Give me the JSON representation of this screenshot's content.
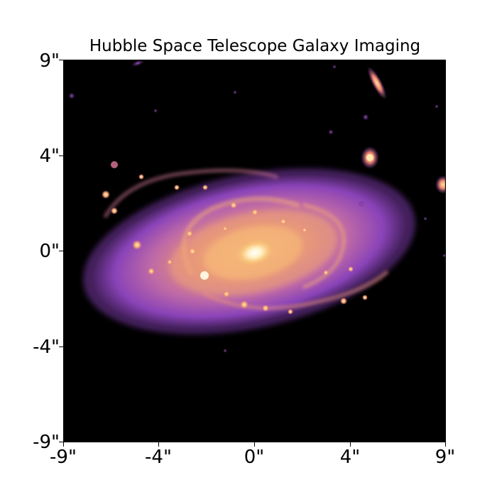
{
  "title": "Hubble Space Telescope Galaxy Imaging",
  "x_ticks": [
    "-9\"",
    "-4\"",
    "0\"",
    "4\"",
    "9\""
  ],
  "y_ticks": [
    "9\"",
    "4\"",
    "0\"",
    "-4\"",
    "-9\""
  ],
  "colors": {
    "background": "#000000",
    "core": "#fffbe8",
    "inner": "#f6b86a",
    "mid": "#d8789a",
    "outer": "#8a43b8",
    "faint": "#3b1a63"
  },
  "colormap": "magma"
}
